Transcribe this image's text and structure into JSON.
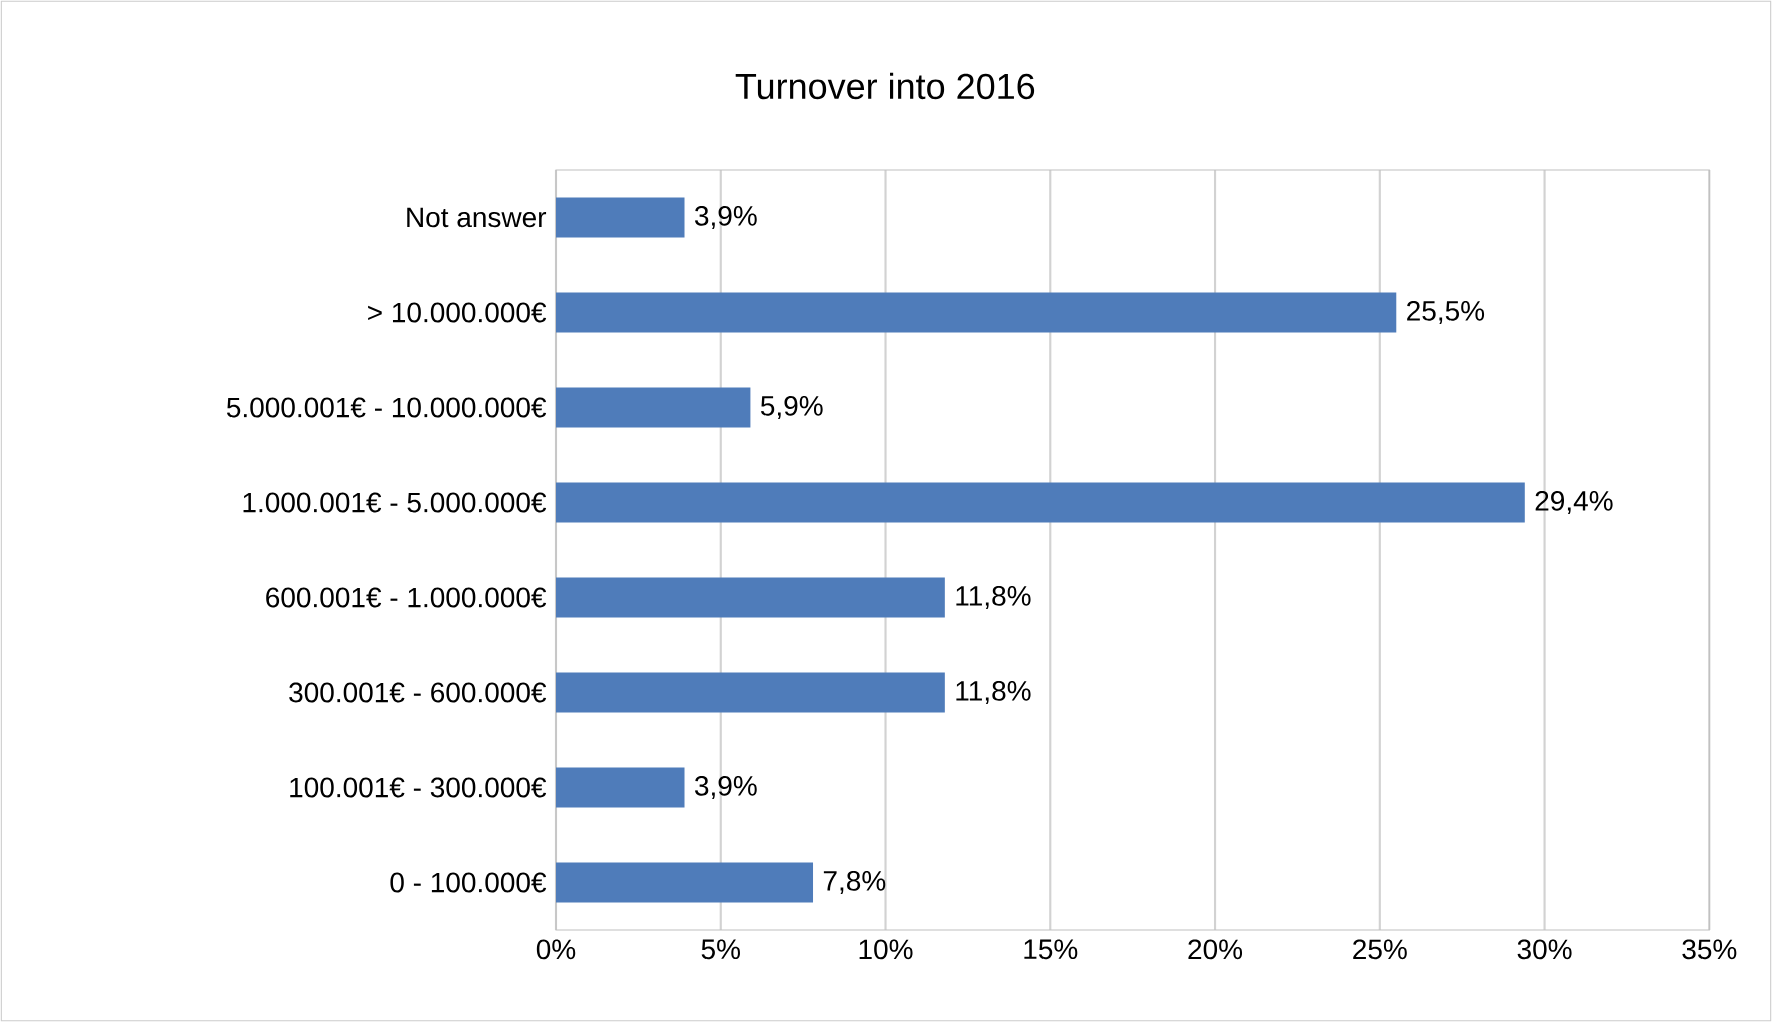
{
  "chart_data": {
    "type": "bar",
    "orientation": "horizontal",
    "title": "Turnover into 2016",
    "categories": [
      "Not answer",
      "> 10.000.000€",
      "5.000.001€ - 10.000.000€",
      "1.000.001€ - 5.000.000€",
      "600.001€ - 1.000.000€",
      "300.001€ - 600.000€",
      "100.001€ - 300.000€",
      "0 - 100.000€"
    ],
    "values": [
      3.9,
      25.5,
      5.9,
      29.4,
      11.8,
      11.8,
      3.9,
      7.8
    ],
    "value_labels": [
      "3,9%",
      "25,5%",
      "5,9%",
      "29,4%",
      "11,8%",
      "11,8%",
      "3,9%",
      "7,8%"
    ],
    "color": "#4f7cba",
    "xlim": [
      0,
      35
    ],
    "xticks": [
      {
        "value": 0,
        "label": "0%"
      },
      {
        "value": 5,
        "label": "5%"
      },
      {
        "value": 10,
        "label": "10%"
      },
      {
        "value": 15,
        "label": "15%"
      },
      {
        "value": 20,
        "label": "20%"
      },
      {
        "value": 25,
        "label": "25%"
      },
      {
        "value": 30,
        "label": "30%"
      },
      {
        "value": 35,
        "label": "35%"
      }
    ],
    "grid": "x"
  }
}
